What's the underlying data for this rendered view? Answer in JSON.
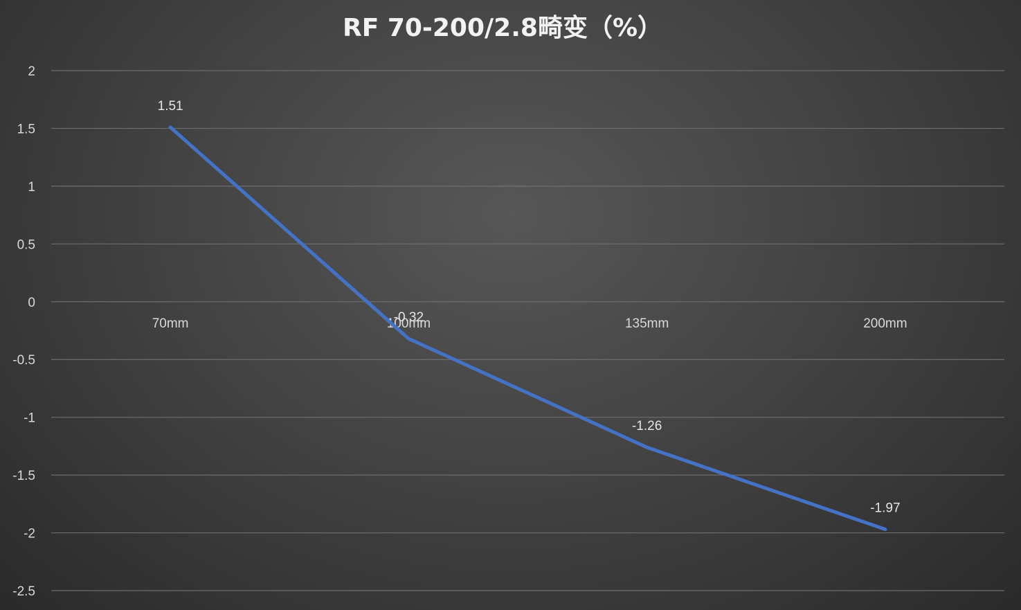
{
  "chart_data": {
    "type": "line",
    "title": "RF 70-200/2.8畸变（%）",
    "categories": [
      "70mm",
      "100mm",
      "135mm",
      "200mm"
    ],
    "series": [
      {
        "values": [
          1.51,
          -0.32,
          -1.26,
          -1.97
        ],
        "labels": [
          "1.51",
          "-0.32",
          "-1.26",
          "-1.97"
        ],
        "color": "#4472c4"
      }
    ],
    "y_ticks": [
      "2",
      "1.5",
      "1",
      "0.5",
      "0",
      "-0.5",
      "-1",
      "-1.5",
      "-2",
      "-2.5"
    ],
    "ylim": [
      -2.5,
      2
    ],
    "grid": true,
    "legend": "none"
  }
}
